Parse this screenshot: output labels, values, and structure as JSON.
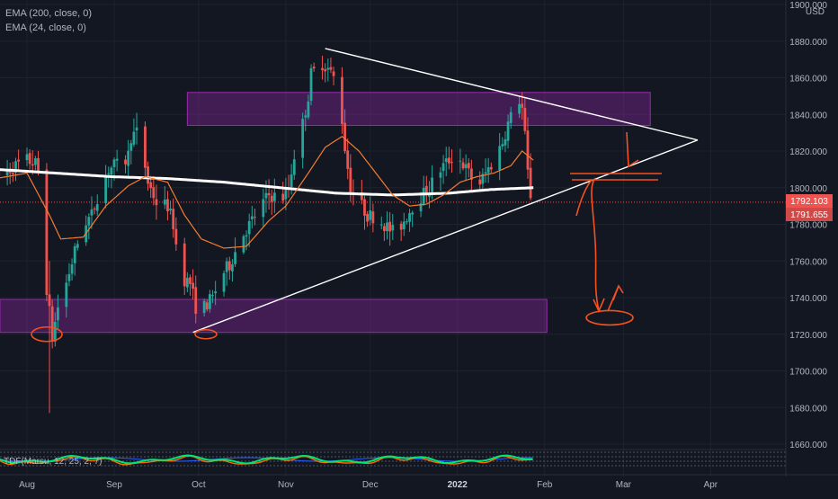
{
  "legend": {
    "ema200": "EMA (200, close, 0)",
    "ema24": "EMA (24, close, 0)"
  },
  "oscillator_label": "TDF(Marsu, 12, 25, 2, 7)",
  "currency": "USD",
  "price_tags": {
    "current": "1792.103",
    "ema": "1791.655"
  },
  "colors": {
    "background": "#131722",
    "bull": "#26a69a",
    "bear": "#ef5350",
    "ema200": "#ffffff",
    "ema24": "#f57c32",
    "zone": "#9c27b0",
    "annotation": "#f4511e",
    "trendline": "#ffffff"
  },
  "chart_data": {
    "type": "candlestick",
    "instrument_currency": "USD",
    "ylim": [
      1650,
      1900
    ],
    "y_ticks": [
      1660,
      1680,
      1700,
      1720,
      1740,
      1760,
      1780,
      1800,
      1820,
      1840,
      1860,
      1880,
      1900
    ],
    "y_tick_labels": [
      "1660.000",
      "1680.000",
      "1700.000",
      "1720.000",
      "1740.000",
      "1760.000",
      "1780.000",
      "1800.000",
      "1820.000",
      "1840.000",
      "1860.000",
      "1880.000",
      "1900.000"
    ],
    "x_ticks": [
      {
        "label": "Aug",
        "day": 0
      },
      {
        "label": "Sep",
        "day": 31
      },
      {
        "label": "Oct",
        "day": 61
      },
      {
        "label": "Nov",
        "day": 92
      },
      {
        "label": "Dec",
        "day": 122
      },
      {
        "label": "2022",
        "day": 153,
        "bold": true
      },
      {
        "label": "Feb",
        "day": 184
      },
      {
        "label": "Mar",
        "day": 212
      },
      {
        "label": "Apr",
        "day": 243
      }
    ],
    "x_range_days": [
      -11,
      258
    ],
    "last_day": 180,
    "anchors": [
      [
        -11,
        1805
      ],
      [
        -4,
        1812
      ],
      [
        0,
        1815
      ],
      [
        3,
        1813
      ],
      [
        5,
        1805
      ],
      [
        7,
        1745
      ],
      [
        8,
        1732
      ],
      [
        9,
        1718
      ],
      [
        11,
        1735
      ],
      [
        14,
        1748
      ],
      [
        17,
        1765
      ],
      [
        20,
        1780
      ],
      [
        23,
        1785
      ],
      [
        26,
        1800
      ],
      [
        29,
        1810
      ],
      [
        31,
        1812
      ],
      [
        34,
        1812
      ],
      [
        36,
        1818
      ],
      [
        37,
        1828
      ],
      [
        39,
        1830
      ],
      [
        41,
        1820
      ],
      [
        43,
        1803
      ],
      [
        46,
        1792
      ],
      [
        50,
        1790
      ],
      [
        52,
        1780
      ],
      [
        54,
        1758
      ],
      [
        56,
        1750
      ],
      [
        58,
        1748
      ],
      [
        60,
        1735
      ],
      [
        61,
        1728
      ],
      [
        63,
        1735
      ],
      [
        66,
        1740
      ],
      [
        69,
        1752
      ],
      [
        72,
        1758
      ],
      [
        74,
        1765
      ],
      [
        77,
        1775
      ],
      [
        80,
        1782
      ],
      [
        83,
        1790
      ],
      [
        86,
        1796
      ],
      [
        89,
        1795
      ],
      [
        91,
        1795
      ],
      [
        93,
        1800
      ],
      [
        95,
        1818
      ],
      [
        98,
        1835
      ],
      [
        100,
        1850
      ],
      [
        101,
        1862
      ],
      [
        103,
        1865
      ],
      [
        105,
        1868
      ],
      [
        107,
        1865
      ],
      [
        109,
        1860
      ],
      [
        111,
        1852
      ],
      [
        113,
        1822
      ],
      [
        115,
        1800
      ],
      [
        117,
        1795
      ],
      [
        119,
        1790
      ],
      [
        121,
        1785
      ],
      [
        124,
        1784
      ],
      [
        127,
        1780
      ],
      [
        129,
        1777
      ],
      [
        131,
        1775
      ],
      [
        134,
        1782
      ],
      [
        137,
        1790
      ],
      [
        140,
        1795
      ],
      [
        143,
        1800
      ],
      [
        146,
        1808
      ],
      [
        148,
        1812
      ],
      [
        150,
        1815
      ],
      [
        152,
        1818
      ],
      [
        154,
        1815
      ],
      [
        157,
        1808
      ],
      [
        160,
        1800
      ],
      [
        163,
        1808
      ],
      [
        166,
        1815
      ],
      [
        169,
        1825
      ],
      [
        171,
        1835
      ],
      [
        173,
        1842
      ],
      [
        175,
        1848
      ],
      [
        176,
        1843
      ],
      [
        177,
        1828
      ],
      [
        178,
        1808
      ],
      [
        179,
        1796
      ],
      [
        180,
        1792.1
      ]
    ],
    "ema200": [
      [
        -11,
        1810
      ],
      [
        10,
        1808
      ],
      [
        30,
        1806
      ],
      [
        50,
        1805
      ],
      [
        70,
        1803
      ],
      [
        90,
        1800
      ],
      [
        110,
        1797
      ],
      [
        130,
        1796
      ],
      [
        150,
        1797
      ],
      [
        165,
        1799
      ],
      [
        180,
        1800
      ]
    ],
    "ema24": [
      [
        -11,
        1805
      ],
      [
        0,
        1808
      ],
      [
        8,
        1785
      ],
      [
        12,
        1772
      ],
      [
        20,
        1773
      ],
      [
        28,
        1790
      ],
      [
        36,
        1801
      ],
      [
        42,
        1806
      ],
      [
        50,
        1803
      ],
      [
        56,
        1785
      ],
      [
        62,
        1772
      ],
      [
        70,
        1767
      ],
      [
        78,
        1768
      ],
      [
        86,
        1782
      ],
      [
        92,
        1790
      ],
      [
        100,
        1808
      ],
      [
        106,
        1822
      ],
      [
        112,
        1828
      ],
      [
        118,
        1820
      ],
      [
        124,
        1808
      ],
      [
        130,
        1796
      ],
      [
        136,
        1790
      ],
      [
        142,
        1791
      ],
      [
        148,
        1796
      ],
      [
        154,
        1803
      ],
      [
        160,
        1806
      ],
      [
        166,
        1808
      ],
      [
        172,
        1812
      ],
      [
        176,
        1820
      ],
      [
        180,
        1815
      ]
    ],
    "zones": [
      {
        "x": [
          2,
          109
        ],
        "y": [
          1721,
          1740
        ]
      },
      {
        "x": [
          -11,
          174
        ],
        "y": [
          1735,
          1751
        ],
        "note": "lower"
      },
      {
        "x": [
          88,
          180
        ],
        "y": [
          1834,
          1852
        ]
      }
    ],
    "trendlines": [
      {
        "from": [
          106,
          1876
        ],
        "to": [
          218,
          1826
        ]
      },
      {
        "from": [
          59,
          1721
        ],
        "to": [
          218,
          1826
        ]
      }
    ]
  }
}
